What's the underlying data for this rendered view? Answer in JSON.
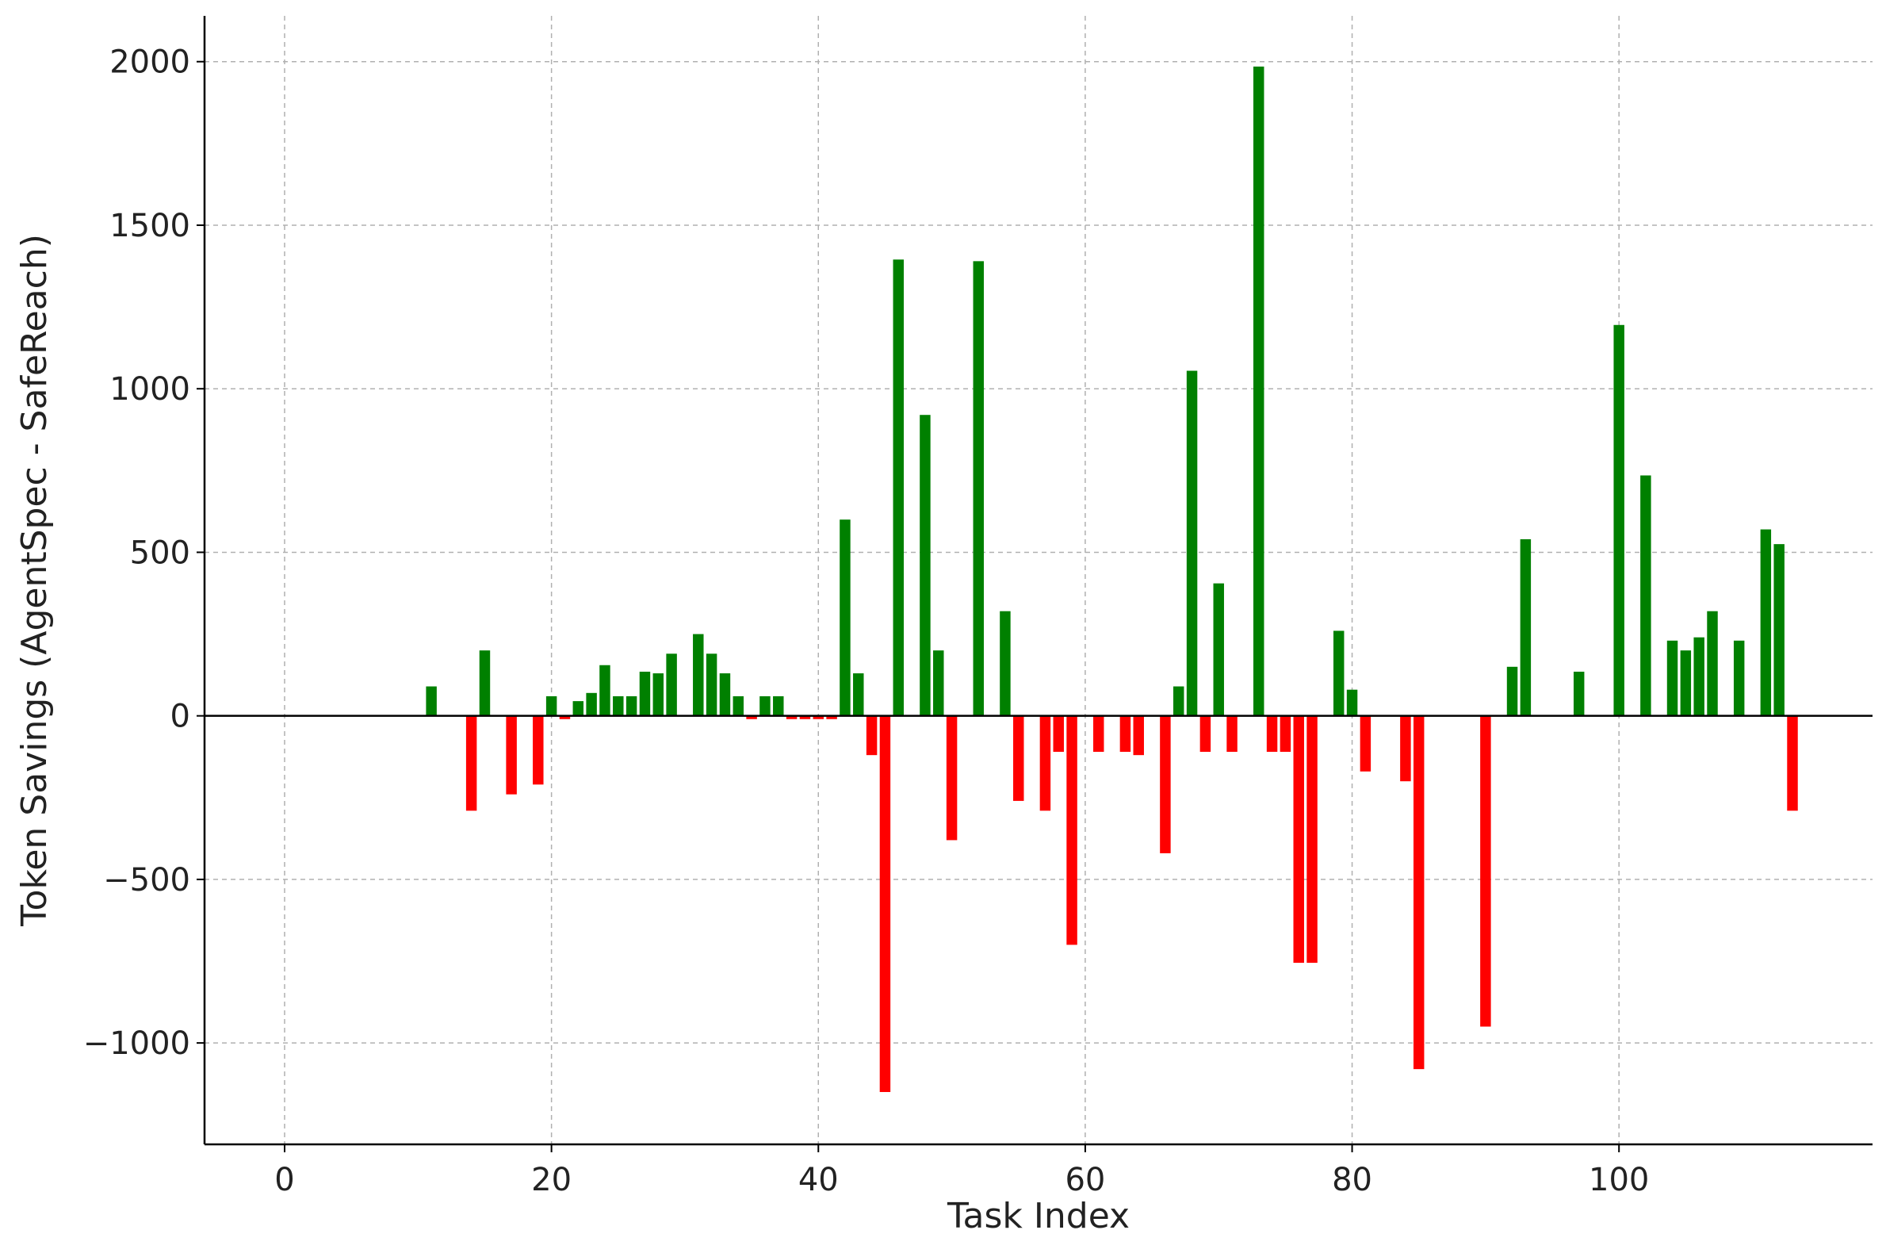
{
  "chart_data": {
    "type": "bar",
    "xlabel": "Task Index",
    "ylabel": "Token Savings (AgentSpec - SafeReach)",
    "xlim": [
      -6,
      119
    ],
    "ylim": [
      -1310,
      2140
    ],
    "xticks": [
      0,
      20,
      40,
      60,
      80,
      100
    ],
    "yticks": [
      -1000,
      -500,
      0,
      500,
      1000,
      1500,
      2000
    ],
    "xtick_labels": [
      "0",
      "20",
      "40",
      "60",
      "80",
      "100"
    ],
    "ytick_labels": [
      "−1000",
      "−500",
      "0",
      "500",
      "1000",
      "1500",
      "2000"
    ],
    "grid": true,
    "legend": "none",
    "colors": {
      "positive": "#008000",
      "negative": "#ff0000",
      "zero_line": "#000000",
      "grid": "#b0b0b0"
    },
    "x": [
      11,
      14,
      15,
      17,
      19,
      20,
      21,
      22,
      23,
      24,
      25,
      26,
      27,
      28,
      29,
      31,
      32,
      33,
      34,
      35,
      36,
      37,
      38,
      39,
      40,
      41,
      42,
      43,
      44,
      45,
      46,
      48,
      49,
      50,
      52,
      54,
      55,
      57,
      58,
      59,
      61,
      63,
      64,
      66,
      67,
      68,
      69,
      70,
      71,
      73,
      74,
      75,
      76,
      77,
      79,
      80,
      81,
      84,
      85,
      90,
      92,
      93,
      97,
      100,
      102,
      104,
      105,
      106,
      107,
      109,
      111,
      112,
      113
    ],
    "values": [
      90,
      -290,
      200,
      -240,
      -210,
      60,
      -10,
      45,
      70,
      155,
      60,
      60,
      135,
      130,
      190,
      250,
      190,
      130,
      60,
      -10,
      60,
      60,
      -10,
      -10,
      -10,
      -10,
      600,
      130,
      -120,
      -1150,
      1395,
      920,
      200,
      -380,
      1390,
      320,
      -260,
      -290,
      -110,
      -700,
      -110,
      -110,
      -120,
      -420,
      90,
      1055,
      -110,
      405,
      -110,
      1985,
      -110,
      -110,
      -755,
      -755,
      260,
      80,
      -170,
      -200,
      -1080,
      -950,
      150,
      540,
      135,
      1195,
      735,
      230,
      200,
      240,
      320,
      230,
      570,
      525,
      -290
    ]
  }
}
